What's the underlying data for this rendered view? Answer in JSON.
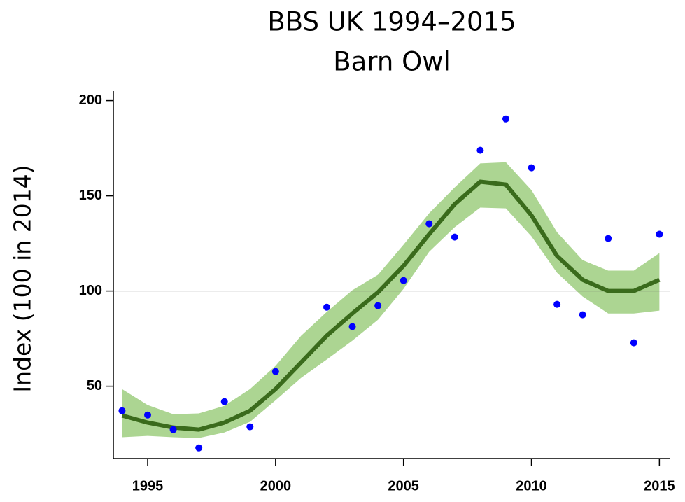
{
  "chart_data": {
    "type": "line",
    "title": "BBS UK 1994–2015",
    "subtitle": "Barn Owl",
    "y_label": "Index (100 in 2014)",
    "x": [
      1994,
      1995,
      1996,
      1997,
      1998,
      1999,
      2000,
      2001,
      2002,
      2003,
      2004,
      2005,
      2006,
      2007,
      2008,
      2009,
      2010,
      2011,
      2012,
      2013,
      2014,
      2015
    ],
    "series": [
      {
        "color": "#3a6b1c",
        "band_color": "#acd592",
        "values": [
          34.6,
          30.9,
          28.3,
          27.2,
          30.9,
          37.1,
          48.5,
          62.5,
          76.5,
          88.2,
          99.3,
          113.2,
          129.8,
          145.6,
          157.4,
          155.9,
          139.7,
          118.4,
          105.9,
          100,
          100,
          105.9
        ],
        "lower": [
          23.2,
          23.9,
          23.2,
          22.8,
          25.7,
          31.3,
          42.6,
          54.4,
          64,
          73.9,
          84.9,
          101.1,
          120.6,
          133.5,
          143.8,
          143.4,
          128.7,
          109.6,
          97.1,
          88.2,
          88.2,
          89.7
        ],
        "upper": [
          48.5,
          40.1,
          35.3,
          35.7,
          39.7,
          48.5,
          60.7,
          76.5,
          89,
          100.4,
          108.5,
          124.3,
          140.8,
          154.4,
          167,
          167.6,
          153,
          130.9,
          116.2,
          110.7,
          110.7,
          119.9
        ]
      }
    ],
    "points": {
      "color": "#0000ff",
      "x": [
        1994,
        1995,
        1996,
        1997,
        1998,
        1999,
        2000,
        2002,
        2003,
        2004,
        2005,
        2006,
        2007,
        2008,
        2009,
        2010,
        2011,
        2012,
        2013,
        2014,
        2015
      ],
      "values": [
        37.1,
        34.9,
        27.2,
        17.6,
        41.9,
        28.7,
        57.7,
        91.5,
        81.3,
        92.3,
        105.5,
        135.3,
        128.3,
        173.9,
        190.4,
        164.7,
        93,
        87.5,
        127.6,
        72.8,
        129.8
      ]
    },
    "reference_line": 100,
    "xlim": [
      1993.66,
      2015.4
    ],
    "ylim": [
      12,
      205
    ],
    "xticks": [
      1995,
      2000,
      2005,
      2010,
      2015
    ],
    "yticks": [
      50,
      100,
      150,
      200
    ]
  }
}
